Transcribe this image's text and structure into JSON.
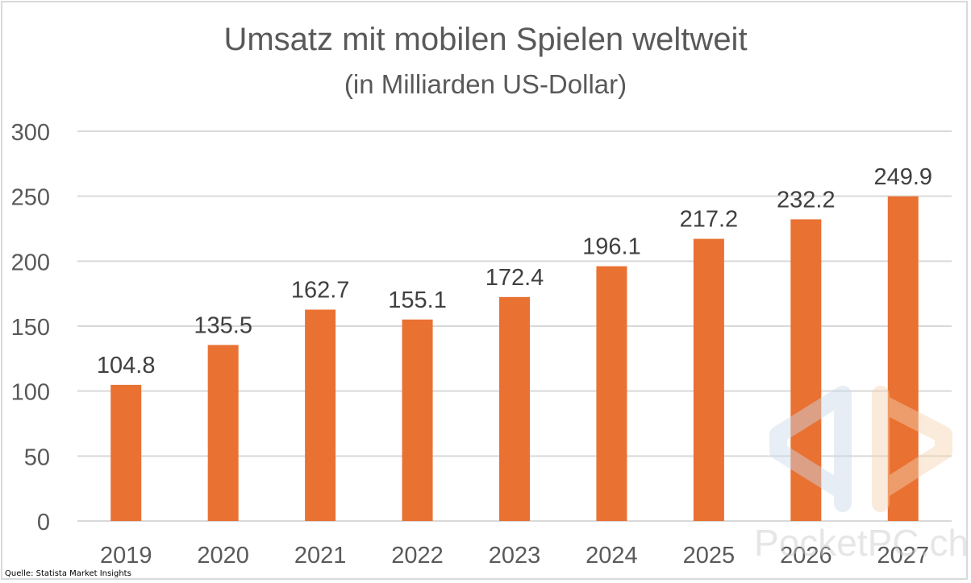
{
  "chart_data": {
    "type": "bar",
    "title": "Umsatz mit mobilen Spielen weltweit",
    "subtitle": "(in Milliarden US-Dollar)",
    "categories": [
      "2019",
      "2020",
      "2021",
      "2022",
      "2023",
      "2024",
      "2025",
      "2026",
      "2027"
    ],
    "values": [
      104.8,
      135.5,
      162.7,
      155.1,
      172.4,
      196.1,
      217.2,
      232.2,
      249.9
    ],
    "data_labels": [
      "104.8",
      "135.5",
      "162.7",
      "155.1",
      "172.4",
      "196.1",
      "217.2",
      "232.2",
      "249.9"
    ],
    "ylim": [
      0,
      300
    ],
    "yticks": [
      "0",
      "50",
      "100",
      "150",
      "200",
      "250",
      "300"
    ],
    "grid": true,
    "legend": "none",
    "bar_color": "#e97132",
    "xlabel": "",
    "ylabel": ""
  },
  "source": "Quelle: Statista Market Insights",
  "watermark": "PocketPC.ch"
}
